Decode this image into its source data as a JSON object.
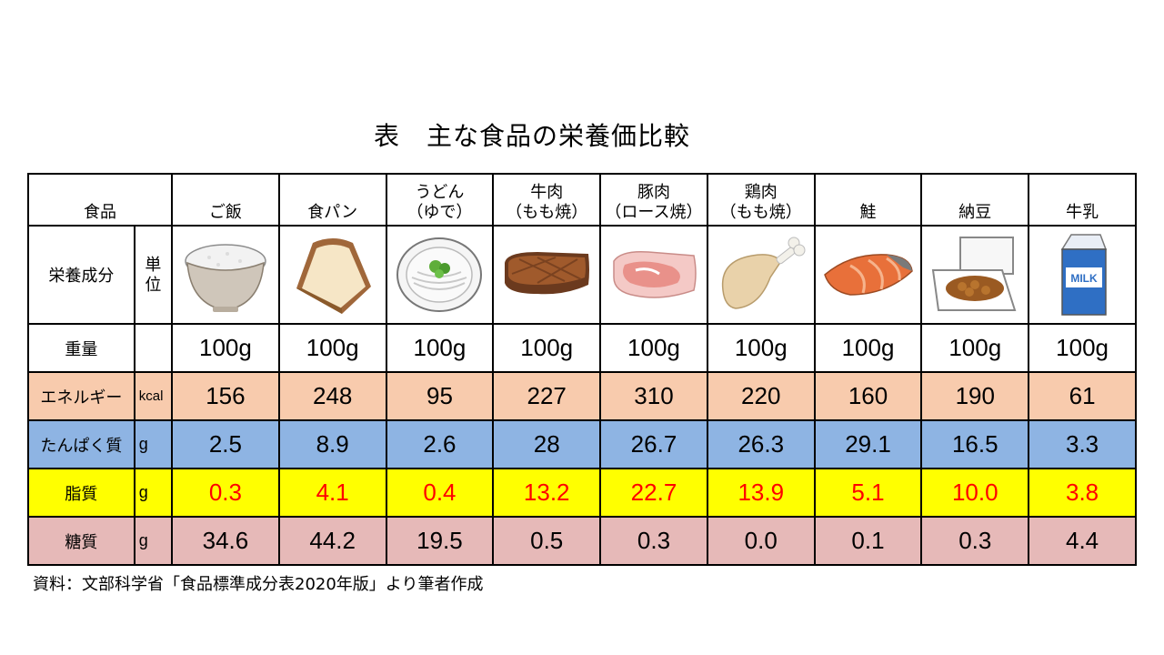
{
  "title": "表　主な食品の栄養価比較",
  "header": {
    "food_label": "食品",
    "nutrient_label": "栄養成分",
    "unit_label": "単位"
  },
  "foods": [
    {
      "line1": "",
      "line2": "ご飯",
      "icon": "rice-bowl-icon"
    },
    {
      "line1": "",
      "line2": "食パン",
      "icon": "bread-icon"
    },
    {
      "line1": "うどん",
      "line2": "（ゆで）",
      "icon": "udon-icon"
    },
    {
      "line1": "牛肉",
      "line2": "（もも焼）",
      "icon": "beef-icon"
    },
    {
      "line1": "豚肉",
      "line2": "（ロース焼）",
      "icon": "pork-icon"
    },
    {
      "line1": "鶏肉",
      "line2": "（もも焼）",
      "icon": "chicken-leg-icon"
    },
    {
      "line1": "",
      "line2": "鮭",
      "icon": "salmon-icon"
    },
    {
      "line1": "",
      "line2": "納豆",
      "icon": "natto-icon"
    },
    {
      "line1": "",
      "line2": "牛乳",
      "icon": "milk-carton-icon"
    }
  ],
  "milk_text": "MILK",
  "rows": {
    "weight": {
      "label": "重量",
      "unit": "",
      "values": [
        "100g",
        "100g",
        "100g",
        "100g",
        "100g",
        "100g",
        "100g",
        "100g",
        "100g"
      ]
    },
    "energy": {
      "label": "エネルギー",
      "unit": "kcal",
      "values": [
        "156",
        "248",
        "95",
        "227",
        "310",
        "220",
        "160",
        "190",
        "61"
      ]
    },
    "protein": {
      "label": "たんぱく質",
      "unit": "g",
      "values": [
        "2.5",
        "8.9",
        "2.6",
        "28",
        "26.7",
        "26.3",
        "29.1",
        "16.5",
        "3.3"
      ]
    },
    "fat": {
      "label": "脂質",
      "unit": "g",
      "values": [
        "0.3",
        "4.1",
        "0.4",
        "13.2",
        "22.7",
        "13.9",
        "5.1",
        "10.0",
        "3.8"
      ]
    },
    "sugar": {
      "label": "糖質",
      "unit": "g",
      "values": [
        "34.6",
        "44.2",
        "19.5",
        "0.5",
        "0.3",
        "0.0",
        "0.1",
        "0.3",
        "4.4"
      ]
    }
  },
  "colors": {
    "energy_bg": "#f8cbad",
    "protein_bg": "#8eb4e3",
    "fat_bg": "#ffff00",
    "fat_text": "#ff0000",
    "sugar_bg": "#e6b9b8"
  },
  "source": "資料：文部科学省「食品標準成分表2020年版」より筆者作成"
}
